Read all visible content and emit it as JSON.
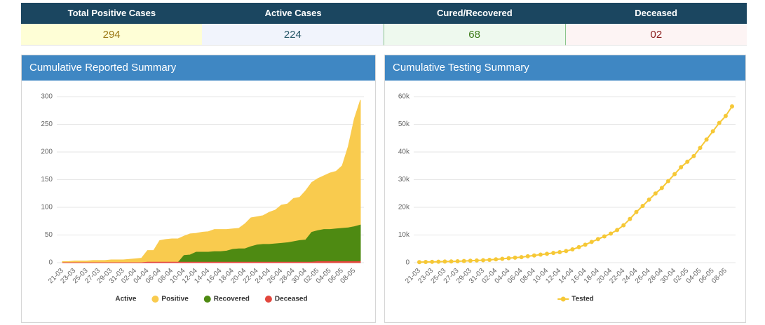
{
  "summary": {
    "headers": [
      "Total Positive Cases",
      "Active Cases",
      "Cured/Recovered",
      "Deceased"
    ],
    "values": [
      "294",
      "224",
      "68",
      "02"
    ]
  },
  "chart_data": [
    {
      "type": "area",
      "title": "Cumulative Reported Summary",
      "categories": [
        "21-03",
        null,
        "23-03",
        null,
        "25-03",
        null,
        "27-03",
        null,
        "29-03",
        null,
        "31-03",
        null,
        "02-04",
        null,
        "04-04",
        null,
        "06-04",
        null,
        "08-04",
        null,
        "10-04",
        null,
        "12-04",
        null,
        "14-04",
        null,
        "16-04",
        null,
        "18-04",
        null,
        "20-04",
        null,
        "22-04",
        null,
        "24-04",
        null,
        "26-04",
        null,
        "28-04",
        null,
        "30-04",
        null,
        "02-05",
        null,
        "04-05",
        null,
        "06-05",
        null,
        "08-05",
        null
      ],
      "series": [
        {
          "name": "Active",
          "visible": false
        },
        {
          "name": "Positive",
          "color": "#f9cb4e",
          "values": [
            2,
            2,
            3,
            3,
            3,
            4,
            4,
            4,
            5,
            5,
            5,
            6,
            7,
            8,
            22,
            22,
            40,
            42,
            43,
            43,
            48,
            52,
            53,
            55,
            56,
            60,
            60,
            60,
            61,
            62,
            70,
            81,
            83,
            85,
            91,
            95,
            104,
            106,
            116,
            118,
            130,
            145,
            152,
            157,
            162,
            165,
            175,
            210,
            260,
            294
          ]
        },
        {
          "name": "Recovered",
          "color": "#4e8a12",
          "values": [
            0,
            0,
            0,
            0,
            0,
            0,
            0,
            0,
            0,
            0,
            0,
            0,
            0,
            0,
            0,
            0,
            0,
            0,
            0,
            0,
            13,
            14,
            19,
            19,
            19,
            20,
            20,
            21,
            24,
            25,
            25,
            29,
            32,
            33,
            33,
            34,
            35,
            36,
            38,
            40,
            41,
            55,
            58,
            60,
            60,
            61,
            62,
            63,
            65,
            68
          ]
        },
        {
          "name": "Deceased",
          "color": "#e2473d",
          "values": [
            0,
            0,
            0,
            0,
            0,
            0,
            0,
            0,
            0,
            0,
            0,
            0,
            0,
            0,
            1,
            1,
            1,
            1,
            1,
            1,
            1,
            1,
            1,
            1,
            1,
            1,
            1,
            1,
            1,
            1,
            1,
            1,
            1,
            1,
            1,
            1,
            1,
            1,
            1,
            1,
            1,
            1,
            2,
            2,
            2,
            2,
            2,
            2,
            2,
            2
          ]
        }
      ],
      "ylim": [
        0,
        300
      ],
      "yticks": [
        0,
        50,
        100,
        150,
        200,
        250,
        300
      ],
      "grid": true
    },
    {
      "type": "line",
      "title": "Cumulative Testing Summary",
      "categories": [
        "21-03",
        null,
        "23-03",
        null,
        "25-03",
        null,
        "27-03",
        null,
        "29-03",
        null,
        "31-03",
        null,
        "02-04",
        null,
        "04-04",
        null,
        "06-04",
        null,
        "08-04",
        null,
        "10-04",
        null,
        "12-04",
        null,
        "14-04",
        null,
        "16-04",
        null,
        "18-04",
        null,
        "20-04",
        null,
        "22-04",
        null,
        "24-04",
        null,
        "26-04",
        null,
        "28-04",
        null,
        "30-04",
        null,
        "02-05",
        null,
        "04-05",
        null,
        "06-05",
        null,
        "08-05",
        null
      ],
      "series": [
        {
          "name": "Tested",
          "color": "#f6c836",
          "values": [
            200,
            250,
            300,
            350,
            400,
            450,
            500,
            600,
            700,
            800,
            900,
            1000,
            1200,
            1400,
            1600,
            1800,
            2000,
            2300,
            2600,
            2900,
            3200,
            3500,
            3800,
            4200,
            4800,
            5600,
            6500,
            7500,
            8500,
            9500,
            10500,
            11800,
            13500,
            15800,
            18300,
            20500,
            22800,
            25000,
            27000,
            29500,
            32000,
            34500,
            36500,
            38500,
            41500,
            44500,
            47500,
            50500,
            53000,
            56500
          ]
        }
      ],
      "ylim": [
        0,
        60000
      ],
      "yticks": [
        0,
        {
          "value": 10000,
          "label": "10k"
        },
        {
          "value": 20000,
          "label": "20k"
        },
        {
          "value": 30000,
          "label": "30k"
        },
        {
          "value": 40000,
          "label": "40k"
        },
        {
          "value": 50000,
          "label": "50k"
        },
        {
          "value": 60000,
          "label": "60k"
        }
      ],
      "grid": true
    }
  ]
}
